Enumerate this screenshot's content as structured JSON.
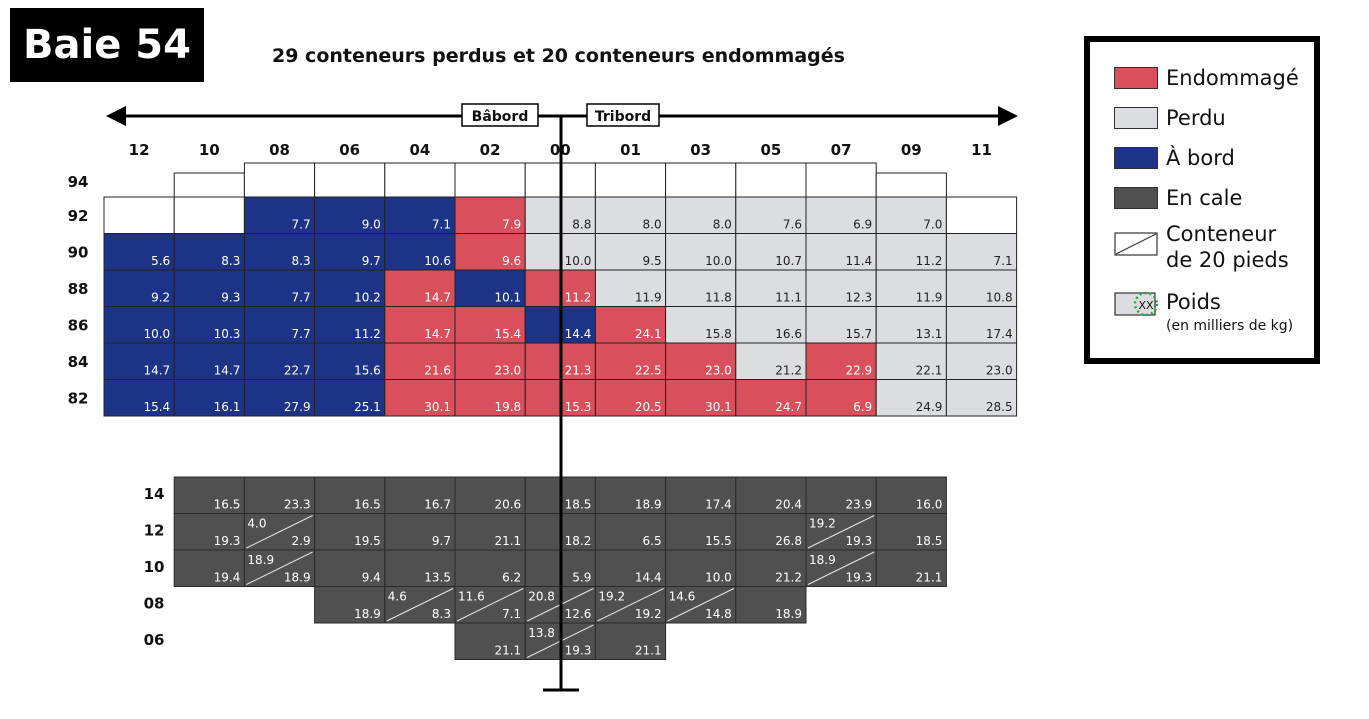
{
  "bay_label": "Baie 54",
  "title": "29 conteneurs perdus et 20 conteneurs endommagés",
  "direction": {
    "port": "Bâbord",
    "starboard": "Tribord"
  },
  "rows_label_note": "",
  "legend": [
    {
      "key": "damaged",
      "label": "Endommagé",
      "color": "#d9505c"
    },
    {
      "key": "lost",
      "label": "Perdu",
      "color": "#dcdde0"
    },
    {
      "key": "onboard",
      "label": "À bord",
      "color": "#1d3387"
    },
    {
      "key": "hold",
      "label": "En cale",
      "color": "#505050"
    },
    {
      "key": "twenty",
      "label": "Conteneur",
      "label2": "de 20 pieds"
    },
    {
      "key": "weight",
      "label": "Poids",
      "sub": "(en milliers de kg)",
      "swatch_text": "XX"
    }
  ],
  "columns": [
    "12",
    "10",
    "08",
    "06",
    "04",
    "02",
    "00",
    "01",
    "03",
    "05",
    "07",
    "09",
    "11"
  ],
  "deck_tiers": [
    "94",
    "92",
    "90",
    "88",
    "86",
    "84",
    "82"
  ],
  "hold_tiers": [
    "14",
    "12",
    "10",
    "08",
    "06"
  ],
  "deck_tier94_empty": [
    "10",
    "08",
    "06",
    "04",
    "02",
    "00",
    "01",
    "03",
    "05",
    "07",
    "09"
  ],
  "deck_cells": [
    {
      "tier": "92",
      "col": "12",
      "type": "empty",
      "w": ""
    },
    {
      "tier": "92",
      "col": "10",
      "type": "empty",
      "w": ""
    },
    {
      "tier": "92",
      "col": "08",
      "type": "onboard",
      "w": "7.7"
    },
    {
      "tier": "92",
      "col": "06",
      "type": "onboard",
      "w": "9.0"
    },
    {
      "tier": "92",
      "col": "04",
      "type": "onboard",
      "w": "7.1"
    },
    {
      "tier": "92",
      "col": "02",
      "type": "damaged",
      "w": "7.9"
    },
    {
      "tier": "92",
      "col": "00",
      "type": "lost",
      "w": "8.8"
    },
    {
      "tier": "92",
      "col": "01",
      "type": "lost",
      "w": "8.0"
    },
    {
      "tier": "92",
      "col": "03",
      "type": "lost",
      "w": "8.0"
    },
    {
      "tier": "92",
      "col": "05",
      "type": "lost",
      "w": "7.6"
    },
    {
      "tier": "92",
      "col": "07",
      "type": "lost",
      "w": "6.9"
    },
    {
      "tier": "92",
      "col": "09",
      "type": "lost",
      "w": "7.0"
    },
    {
      "tier": "92",
      "col": "11",
      "type": "empty",
      "w": ""
    },
    {
      "tier": "90",
      "col": "12",
      "type": "onboard",
      "w": "5.6"
    },
    {
      "tier": "90",
      "col": "10",
      "type": "onboard",
      "w": "8.3"
    },
    {
      "tier": "90",
      "col": "08",
      "type": "onboard",
      "w": "8.3"
    },
    {
      "tier": "90",
      "col": "06",
      "type": "onboard",
      "w": "9.7"
    },
    {
      "tier": "90",
      "col": "04",
      "type": "onboard",
      "w": "10.6"
    },
    {
      "tier": "90",
      "col": "02",
      "type": "damaged",
      "w": "9.6"
    },
    {
      "tier": "90",
      "col": "00",
      "type": "lost",
      "w": "10.0"
    },
    {
      "tier": "90",
      "col": "01",
      "type": "lost",
      "w": "9.5"
    },
    {
      "tier": "90",
      "col": "03",
      "type": "lost",
      "w": "10.0"
    },
    {
      "tier": "90",
      "col": "05",
      "type": "lost",
      "w": "10.7"
    },
    {
      "tier": "90",
      "col": "07",
      "type": "lost",
      "w": "11.4"
    },
    {
      "tier": "90",
      "col": "09",
      "type": "lost",
      "w": "11.2"
    },
    {
      "tier": "90",
      "col": "11",
      "type": "lost",
      "w": "7.1"
    },
    {
      "tier": "88",
      "col": "12",
      "type": "onboard",
      "w": "9.2"
    },
    {
      "tier": "88",
      "col": "10",
      "type": "onboard",
      "w": "9.3"
    },
    {
      "tier": "88",
      "col": "08",
      "type": "onboard",
      "w": "7.7"
    },
    {
      "tier": "88",
      "col": "06",
      "type": "onboard",
      "w": "10.2"
    },
    {
      "tier": "88",
      "col": "04",
      "type": "damaged",
      "w": "14.7"
    },
    {
      "tier": "88",
      "col": "02",
      "type": "onboard",
      "w": "10.1"
    },
    {
      "tier": "88",
      "col": "00",
      "type": "damaged",
      "w": "11.2"
    },
    {
      "tier": "88",
      "col": "01",
      "type": "lost",
      "w": "11.9"
    },
    {
      "tier": "88",
      "col": "03",
      "type": "lost",
      "w": "11.8"
    },
    {
      "tier": "88",
      "col": "05",
      "type": "lost",
      "w": "11.1"
    },
    {
      "tier": "88",
      "col": "07",
      "type": "lost",
      "w": "12.3"
    },
    {
      "tier": "88",
      "col": "09",
      "type": "lost",
      "w": "11.9"
    },
    {
      "tier": "88",
      "col": "11",
      "type": "lost",
      "w": "10.8"
    },
    {
      "tier": "86",
      "col": "12",
      "type": "onboard",
      "w": "10.0"
    },
    {
      "tier": "86",
      "col": "10",
      "type": "onboard",
      "w": "10.3"
    },
    {
      "tier": "86",
      "col": "08",
      "type": "onboard",
      "w": "7.7"
    },
    {
      "tier": "86",
      "col": "06",
      "type": "onboard",
      "w": "11.2"
    },
    {
      "tier": "86",
      "col": "04",
      "type": "damaged",
      "w": "14.7"
    },
    {
      "tier": "86",
      "col": "02",
      "type": "damaged",
      "w": "15.4"
    },
    {
      "tier": "86",
      "col": "00",
      "type": "onboard",
      "w": "14.4"
    },
    {
      "tier": "86",
      "col": "01",
      "type": "damaged",
      "w": "24.1"
    },
    {
      "tier": "86",
      "col": "03",
      "type": "lost",
      "w": "15.8"
    },
    {
      "tier": "86",
      "col": "05",
      "type": "lost",
      "w": "16.6"
    },
    {
      "tier": "86",
      "col": "07",
      "type": "lost",
      "w": "15.7"
    },
    {
      "tier": "86",
      "col": "09",
      "type": "lost",
      "w": "13.1"
    },
    {
      "tier": "86",
      "col": "11",
      "type": "lost",
      "w": "17.4"
    },
    {
      "tier": "84",
      "col": "12",
      "type": "onboard",
      "w": "14.7"
    },
    {
      "tier": "84",
      "col": "10",
      "type": "onboard",
      "w": "14.7"
    },
    {
      "tier": "84",
      "col": "08",
      "type": "onboard",
      "w": "22.7"
    },
    {
      "tier": "84",
      "col": "06",
      "type": "onboard",
      "w": "15.6"
    },
    {
      "tier": "84",
      "col": "04",
      "type": "damaged",
      "w": "21.6"
    },
    {
      "tier": "84",
      "col": "02",
      "type": "damaged",
      "w": "23.0"
    },
    {
      "tier": "84",
      "col": "00",
      "type": "damaged",
      "w": "21.3"
    },
    {
      "tier": "84",
      "col": "01",
      "type": "damaged",
      "w": "22.5"
    },
    {
      "tier": "84",
      "col": "03",
      "type": "damaged",
      "w": "23.0"
    },
    {
      "tier": "84",
      "col": "05",
      "type": "lost",
      "w": "21.2"
    },
    {
      "tier": "84",
      "col": "07",
      "type": "damaged",
      "w": "22.9"
    },
    {
      "tier": "84",
      "col": "09",
      "type": "lost",
      "w": "22.1"
    },
    {
      "tier": "84",
      "col": "11",
      "type": "lost",
      "w": "23.0"
    },
    {
      "tier": "82",
      "col": "12",
      "type": "onboard",
      "w": "15.4"
    },
    {
      "tier": "82",
      "col": "10",
      "type": "onboard",
      "w": "16.1"
    },
    {
      "tier": "82",
      "col": "08",
      "type": "onboard",
      "w": "27.9"
    },
    {
      "tier": "82",
      "col": "06",
      "type": "onboard",
      "w": "25.1"
    },
    {
      "tier": "82",
      "col": "04",
      "type": "damaged",
      "w": "30.1"
    },
    {
      "tier": "82",
      "col": "02",
      "type": "damaged",
      "w": "19.8"
    },
    {
      "tier": "82",
      "col": "00",
      "type": "damaged",
      "w": "15.3"
    },
    {
      "tier": "82",
      "col": "01",
      "type": "damaged",
      "w": "20.5"
    },
    {
      "tier": "82",
      "col": "03",
      "type": "damaged",
      "w": "30.1"
    },
    {
      "tier": "82",
      "col": "05",
      "type": "damaged",
      "w": "24.7"
    },
    {
      "tier": "82",
      "col": "07",
      "type": "damaged",
      "w": "6.9"
    },
    {
      "tier": "82",
      "col": "09",
      "type": "lost",
      "w": "24.9"
    },
    {
      "tier": "82",
      "col": "11",
      "type": "lost",
      "w": "28.5"
    }
  ],
  "hold_cells": [
    {
      "tier": "14",
      "col": "10",
      "w": "16.5"
    },
    {
      "tier": "14",
      "col": "08",
      "w": "23.3"
    },
    {
      "tier": "14",
      "col": "06",
      "w": "16.5"
    },
    {
      "tier": "14",
      "col": "04",
      "w": "16.7"
    },
    {
      "tier": "14",
      "col": "02",
      "w": "20.6"
    },
    {
      "tier": "14",
      "col": "00",
      "w": "18.5"
    },
    {
      "tier": "14",
      "col": "01",
      "w": "18.9"
    },
    {
      "tier": "14",
      "col": "03",
      "w": "17.4"
    },
    {
      "tier": "14",
      "col": "05",
      "w": "20.4"
    },
    {
      "tier": "14",
      "col": "07",
      "w": "23.9"
    },
    {
      "tier": "14",
      "col": "09",
      "w": "16.0"
    },
    {
      "tier": "12",
      "col": "10",
      "w": "19.3"
    },
    {
      "tier": "12",
      "col": "08",
      "w": "2.9",
      "w2": "4.0"
    },
    {
      "tier": "12",
      "col": "06",
      "w": "19.5"
    },
    {
      "tier": "12",
      "col": "04",
      "w": "9.7"
    },
    {
      "tier": "12",
      "col": "02",
      "w": "21.1"
    },
    {
      "tier": "12",
      "col": "00",
      "w": "18.2"
    },
    {
      "tier": "12",
      "col": "01",
      "w": "6.5"
    },
    {
      "tier": "12",
      "col": "03",
      "w": "15.5"
    },
    {
      "tier": "12",
      "col": "05",
      "w": "26.8"
    },
    {
      "tier": "12",
      "col": "07",
      "w": "19.3",
      "w2": "19.2"
    },
    {
      "tier": "12",
      "col": "09",
      "w": "18.5"
    },
    {
      "tier": "10",
      "col": "10",
      "w": "19.4"
    },
    {
      "tier": "10",
      "col": "08",
      "w": "18.9",
      "w2": "18.9"
    },
    {
      "tier": "10",
      "col": "06",
      "w": "9.4"
    },
    {
      "tier": "10",
      "col": "04",
      "w": "13.5"
    },
    {
      "tier": "10",
      "col": "02",
      "w": "6.2"
    },
    {
      "tier": "10",
      "col": "00",
      "w": "5.9"
    },
    {
      "tier": "10",
      "col": "01",
      "w": "14.4"
    },
    {
      "tier": "10",
      "col": "03",
      "w": "10.0"
    },
    {
      "tier": "10",
      "col": "05",
      "w": "21.2"
    },
    {
      "tier": "10",
      "col": "07",
      "w": "19.3",
      "w2": "18.9"
    },
    {
      "tier": "10",
      "col": "09",
      "w": "21.1"
    },
    {
      "tier": "08",
      "col": "06",
      "w": "18.9"
    },
    {
      "tier": "08",
      "col": "04",
      "w": "8.3",
      "w2": "4.6"
    },
    {
      "tier": "08",
      "col": "02",
      "w": "7.1",
      "w2": "11.6"
    },
    {
      "tier": "08",
      "col": "00",
      "w": "12.6",
      "w2": "20.8"
    },
    {
      "tier": "08",
      "col": "01",
      "w": "19.2",
      "w2": "19.2"
    },
    {
      "tier": "08",
      "col": "03",
      "w": "14.8",
      "w2": "14.6"
    },
    {
      "tier": "08",
      "col": "05",
      "w": "18.9"
    },
    {
      "tier": "06",
      "col": "02",
      "w": "21.1"
    },
    {
      "tier": "06",
      "col": "00",
      "w": "19.3",
      "w2": "13.8"
    },
    {
      "tier": "06",
      "col": "01",
      "w": "21.1"
    }
  ]
}
